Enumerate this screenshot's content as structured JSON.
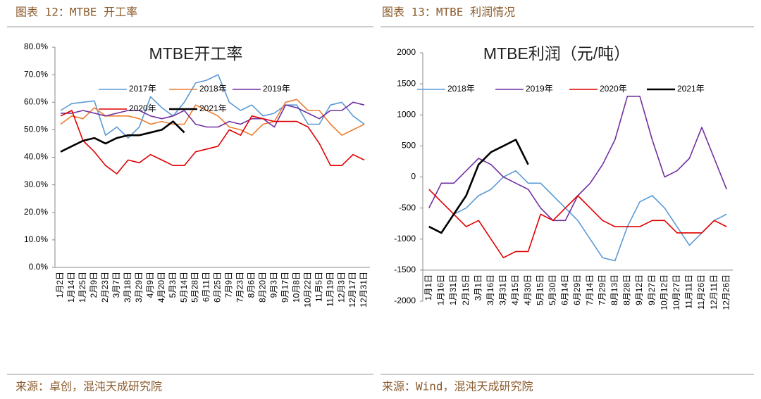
{
  "chart_data": [
    {
      "type": "line",
      "caption": "图表 12：MTBE 开工率",
      "title": "MTBE开工率",
      "source": "来源：卓创，混沌天成研究院",
      "categories": [
        "1月2日",
        "1月14日",
        "1月25日",
        "2月9日",
        "2月23日",
        "3月7日",
        "3月18日",
        "3月29日",
        "4月9日",
        "4月20日",
        "5月3日",
        "5月14日",
        "5月28日",
        "6月11日",
        "6月25日",
        "7月9日",
        "7月23日",
        "8月6日",
        "8月20日",
        "9月3日",
        "9月17日",
        "10月8日",
        "10月22日",
        "11月5日",
        "11月19日",
        "12月3日",
        "12月17日",
        "12月31日"
      ],
      "ylim": [
        0,
        80
      ],
      "yticks": [
        {
          "value": 0,
          "label": "0.0%"
        },
        {
          "value": 10,
          "label": "10.0%"
        },
        {
          "value": 20,
          "label": "20.0%"
        },
        {
          "value": 30,
          "label": "30.0%"
        },
        {
          "value": 40,
          "label": "40.0%"
        },
        {
          "value": 50,
          "label": "50.0%"
        },
        {
          "value": 60,
          "label": "60.0%"
        },
        {
          "value": 70,
          "label": "70.0%"
        },
        {
          "value": 80,
          "label": "80.0%"
        }
      ],
      "x_axis_crosses": 0,
      "series": [
        {
          "name": "2017年",
          "color": "#5b9bd5",
          "values": [
            57,
            59.5,
            60,
            60.5,
            48,
            51,
            47,
            51,
            62,
            58,
            55,
            60,
            67,
            68,
            70,
            60,
            57,
            59,
            55,
            56,
            59,
            59,
            52,
            52,
            59,
            60,
            55,
            52
          ]
        },
        {
          "name": "2018年",
          "color": "#ed7d31",
          "values": [
            52,
            55,
            54,
            58,
            55,
            55,
            55,
            54,
            52,
            53,
            52,
            52,
            59,
            57,
            55,
            51,
            50,
            48,
            52,
            53,
            60,
            61,
            57,
            57,
            52,
            48,
            50,
            52
          ]
        },
        {
          "name": "2019年",
          "color": "#7030a0",
          "values": [
            56,
            56,
            57,
            56,
            55,
            56,
            57,
            57,
            55,
            54,
            55,
            57,
            52,
            51,
            51,
            53,
            52,
            54,
            54,
            51,
            59,
            58,
            56,
            54,
            57,
            57,
            60,
            59
          ]
        },
        {
          "name": "2020年",
          "color": "#e00000",
          "values": [
            55,
            57,
            46,
            42,
            37,
            34,
            39,
            38,
            41,
            39,
            37,
            37,
            42,
            43,
            44,
            50,
            48,
            55,
            54,
            53,
            53,
            53,
            51,
            45,
            37,
            37,
            41,
            39
          ]
        },
        {
          "name": "2021年",
          "color": "#000000",
          "values": [
            42,
            44,
            46,
            47,
            45,
            47,
            48,
            48,
            49,
            50,
            53,
            49,
            null,
            null,
            null,
            null,
            null,
            null,
            null,
            null,
            null,
            null,
            null,
            null,
            null,
            null,
            null,
            null
          ]
        }
      ]
    },
    {
      "type": "line",
      "caption": "图表 13：MTBE 利润情况",
      "title": "MTBE利润（元/吨）",
      "source": "来源：Wind，混沌天成研究院",
      "categories": [
        "1月1日",
        "1月16日",
        "1月31日",
        "2月15日",
        "3月1日",
        "3月16日",
        "3月31日",
        "4月15日",
        "4月30日",
        "5月15日",
        "5月30日",
        "6月14日",
        "6月29日",
        "7月14日",
        "7月29日",
        "8月13日",
        "8月28日",
        "9月12日",
        "9月27日",
        "10月12日",
        "10月27日",
        "11月11日",
        "11月26日",
        "12月11日",
        "12月26日"
      ],
      "ylim": [
        -2000,
        2000
      ],
      "yticks": [
        -2000,
        -1500,
        -1000,
        -500,
        0,
        500,
        1000,
        1500,
        2000
      ],
      "x_axis_crosses": -1500,
      "series": [
        {
          "name": "2018年",
          "color": "#5b9bd5",
          "values": [
            -800,
            -900,
            -600,
            -500,
            -300,
            -200,
            0,
            100,
            -100,
            -100,
            -300,
            -500,
            -700,
            -1000,
            -1300,
            -1350,
            -800,
            -400,
            -300,
            -500,
            -800,
            -1100,
            -900,
            -700,
            -600
          ]
        },
        {
          "name": "2019年",
          "color": "#7030a0",
          "values": [
            -500,
            -100,
            -100,
            100,
            300,
            200,
            0,
            -100,
            -200,
            -500,
            -700,
            -700,
            -300,
            -100,
            200,
            600,
            1300,
            1300,
            600,
            0,
            100,
            300,
            800,
            300,
            -200
          ]
        },
        {
          "name": "2020年",
          "color": "#e00000",
          "values": [
            -200,
            -400,
            -600,
            -800,
            -700,
            -1000,
            -1300,
            -1200,
            -1200,
            -600,
            -700,
            -500,
            -300,
            -500,
            -700,
            -800,
            -800,
            -800,
            -700,
            -700,
            -900,
            -900,
            -900,
            -700,
            -800
          ]
        },
        {
          "name": "2021年",
          "color": "#000000",
          "values": [
            -800,
            -900,
            -600,
            -300,
            200,
            400,
            500,
            600,
            200,
            null,
            null,
            null,
            null,
            null,
            null,
            null,
            null,
            null,
            null,
            null,
            null,
            null,
            null,
            null,
            null
          ]
        }
      ]
    }
  ]
}
